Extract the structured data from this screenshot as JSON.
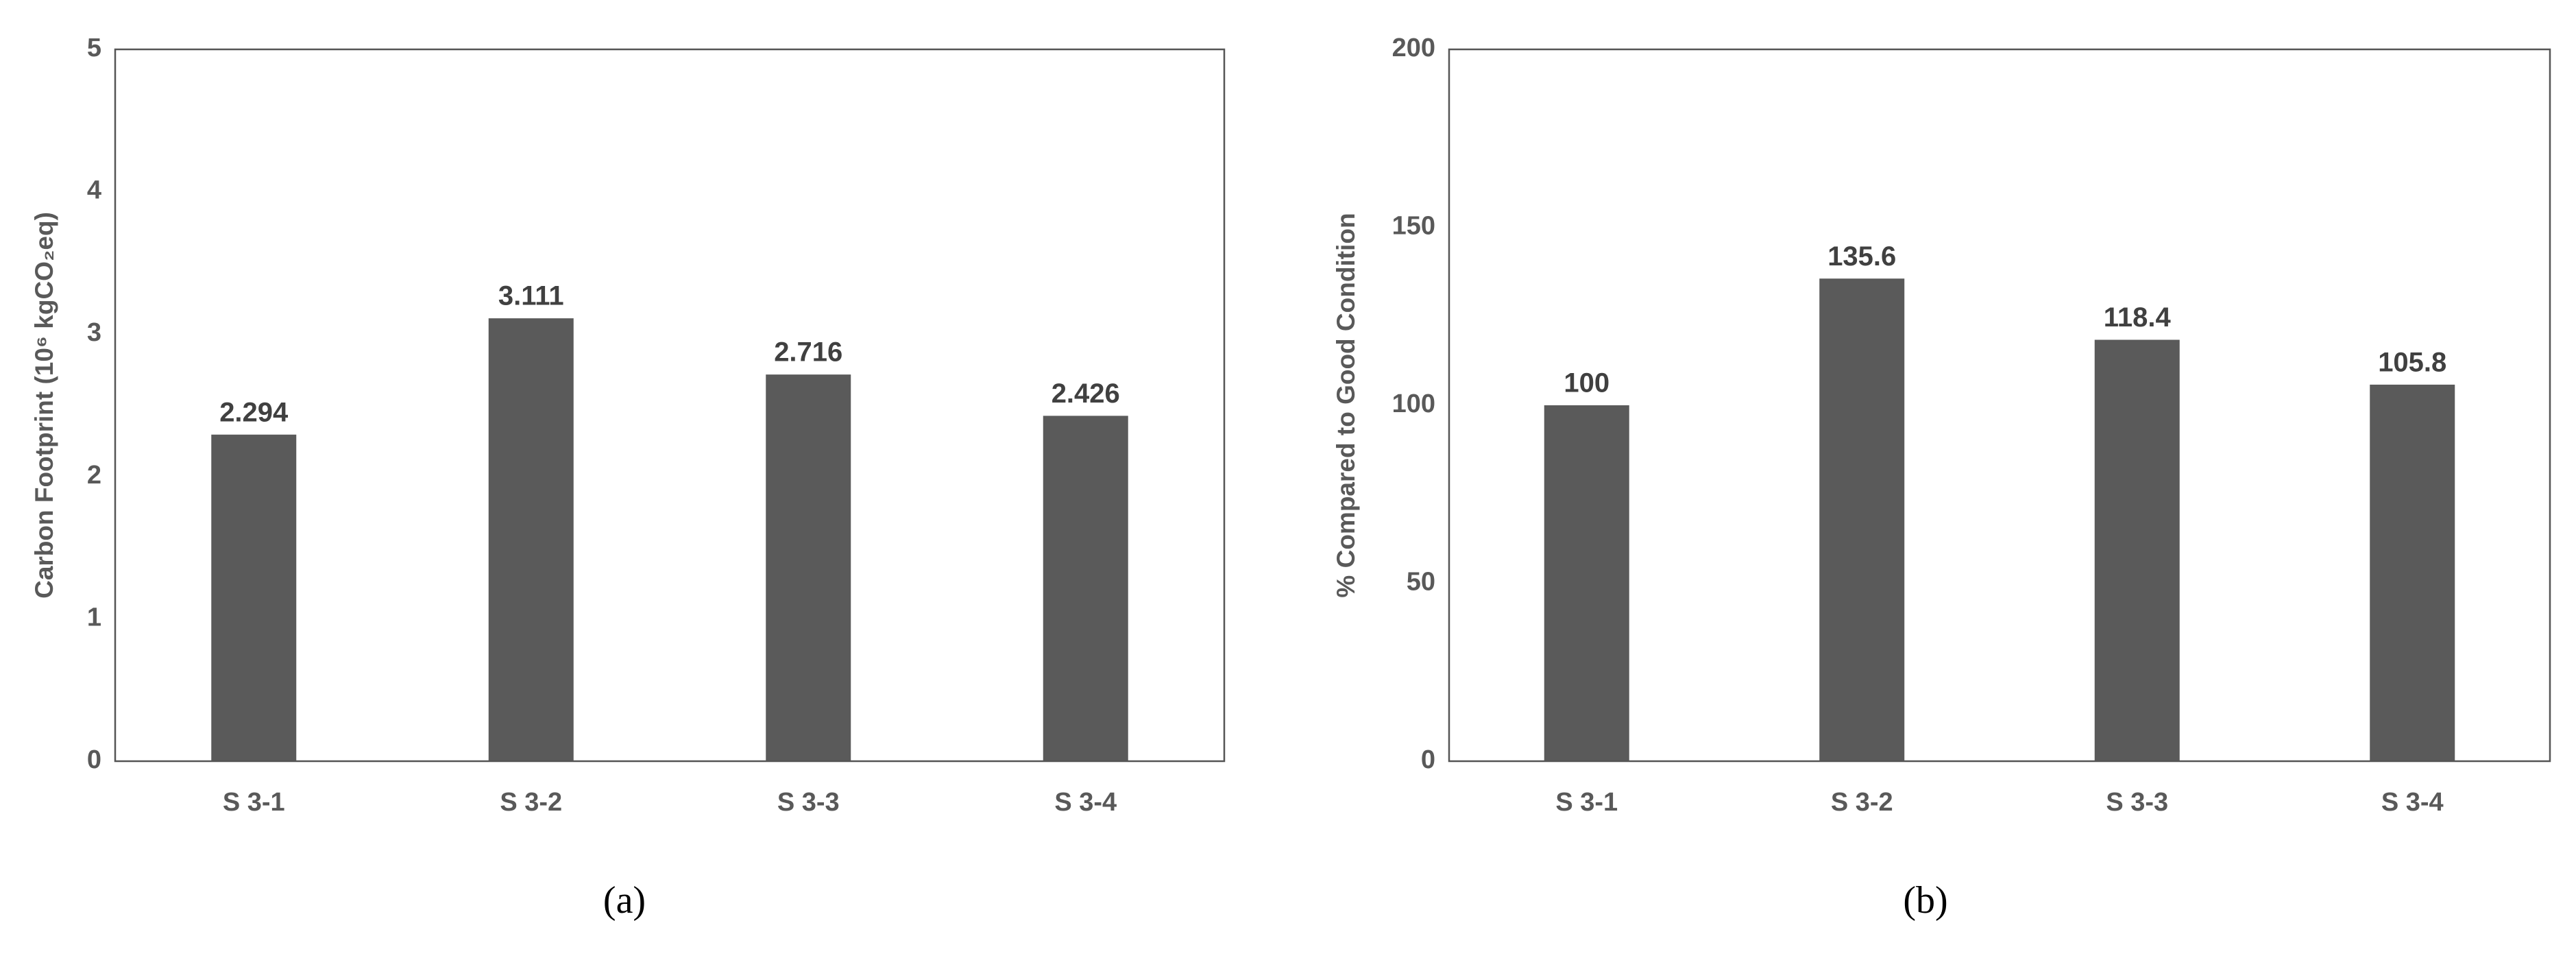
{
  "chart_data": [
    {
      "type": "bar",
      "caption": "(a)",
      "y_label": "Carbon Footprint (10⁶ kgCO₂eq)",
      "categories": [
        "S 3-1",
        "S 3-2",
        "S 3-3",
        "S 3-4"
      ],
      "values": [
        2.294,
        3.111,
        2.716,
        2.426
      ],
      "color": "#5a5a5a",
      "ylim": [
        0,
        5
      ],
      "yticks": [
        0,
        1,
        2,
        3,
        4,
        5
      ],
      "grid": false
    },
    {
      "type": "bar",
      "caption": "(b)",
      "y_label": "% Compared to Good Condition",
      "categories": [
        "S 3-1",
        "S 3-2",
        "S 3-3",
        "S 3-4"
      ],
      "values": [
        100,
        135.6,
        118.4,
        105.8
      ],
      "color": "#5a5a5a",
      "ylim": [
        0,
        200
      ],
      "yticks": [
        0,
        50,
        100,
        150,
        200
      ],
      "grid": false
    }
  ]
}
